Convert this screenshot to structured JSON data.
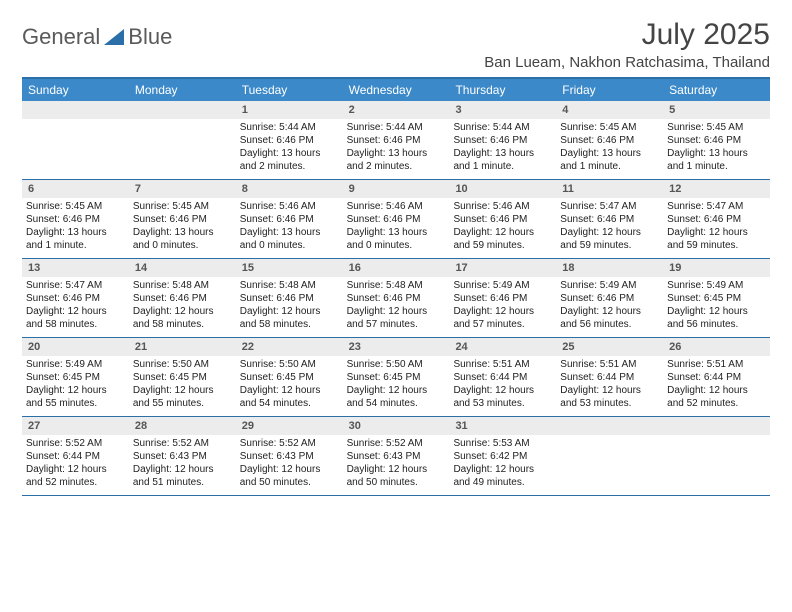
{
  "logo": {
    "word1": "General",
    "word2": "Blue"
  },
  "title": "July 2025",
  "location": "Ban Lueam, Nakhon Ratchasima, Thailand",
  "colors": {
    "header_bg": "#3b89c9",
    "header_text": "#ffffff",
    "border": "#2a6fa8",
    "daynum_bg": "#ececec",
    "daynum_text": "#555555",
    "body_text": "#222222",
    "logo_gray": "#5a5a5a",
    "logo_blue": "#2a6fa8"
  },
  "day_names": [
    "Sunday",
    "Monday",
    "Tuesday",
    "Wednesday",
    "Thursday",
    "Friday",
    "Saturday"
  ],
  "weeks": [
    [
      {
        "blank": true
      },
      {
        "blank": true
      },
      {
        "num": "1",
        "sunrise": "Sunrise: 5:44 AM",
        "sunset": "Sunset: 6:46 PM",
        "daylight": "Daylight: 13 hours and 2 minutes."
      },
      {
        "num": "2",
        "sunrise": "Sunrise: 5:44 AM",
        "sunset": "Sunset: 6:46 PM",
        "daylight": "Daylight: 13 hours and 2 minutes."
      },
      {
        "num": "3",
        "sunrise": "Sunrise: 5:44 AM",
        "sunset": "Sunset: 6:46 PM",
        "daylight": "Daylight: 13 hours and 1 minute."
      },
      {
        "num": "4",
        "sunrise": "Sunrise: 5:45 AM",
        "sunset": "Sunset: 6:46 PM",
        "daylight": "Daylight: 13 hours and 1 minute."
      },
      {
        "num": "5",
        "sunrise": "Sunrise: 5:45 AM",
        "sunset": "Sunset: 6:46 PM",
        "daylight": "Daylight: 13 hours and 1 minute."
      }
    ],
    [
      {
        "num": "6",
        "sunrise": "Sunrise: 5:45 AM",
        "sunset": "Sunset: 6:46 PM",
        "daylight": "Daylight: 13 hours and 1 minute."
      },
      {
        "num": "7",
        "sunrise": "Sunrise: 5:45 AM",
        "sunset": "Sunset: 6:46 PM",
        "daylight": "Daylight: 13 hours and 0 minutes."
      },
      {
        "num": "8",
        "sunrise": "Sunrise: 5:46 AM",
        "sunset": "Sunset: 6:46 PM",
        "daylight": "Daylight: 13 hours and 0 minutes."
      },
      {
        "num": "9",
        "sunrise": "Sunrise: 5:46 AM",
        "sunset": "Sunset: 6:46 PM",
        "daylight": "Daylight: 13 hours and 0 minutes."
      },
      {
        "num": "10",
        "sunrise": "Sunrise: 5:46 AM",
        "sunset": "Sunset: 6:46 PM",
        "daylight": "Daylight: 12 hours and 59 minutes."
      },
      {
        "num": "11",
        "sunrise": "Sunrise: 5:47 AM",
        "sunset": "Sunset: 6:46 PM",
        "daylight": "Daylight: 12 hours and 59 minutes."
      },
      {
        "num": "12",
        "sunrise": "Sunrise: 5:47 AM",
        "sunset": "Sunset: 6:46 PM",
        "daylight": "Daylight: 12 hours and 59 minutes."
      }
    ],
    [
      {
        "num": "13",
        "sunrise": "Sunrise: 5:47 AM",
        "sunset": "Sunset: 6:46 PM",
        "daylight": "Daylight: 12 hours and 58 minutes."
      },
      {
        "num": "14",
        "sunrise": "Sunrise: 5:48 AM",
        "sunset": "Sunset: 6:46 PM",
        "daylight": "Daylight: 12 hours and 58 minutes."
      },
      {
        "num": "15",
        "sunrise": "Sunrise: 5:48 AM",
        "sunset": "Sunset: 6:46 PM",
        "daylight": "Daylight: 12 hours and 58 minutes."
      },
      {
        "num": "16",
        "sunrise": "Sunrise: 5:48 AM",
        "sunset": "Sunset: 6:46 PM",
        "daylight": "Daylight: 12 hours and 57 minutes."
      },
      {
        "num": "17",
        "sunrise": "Sunrise: 5:49 AM",
        "sunset": "Sunset: 6:46 PM",
        "daylight": "Daylight: 12 hours and 57 minutes."
      },
      {
        "num": "18",
        "sunrise": "Sunrise: 5:49 AM",
        "sunset": "Sunset: 6:46 PM",
        "daylight": "Daylight: 12 hours and 56 minutes."
      },
      {
        "num": "19",
        "sunrise": "Sunrise: 5:49 AM",
        "sunset": "Sunset: 6:45 PM",
        "daylight": "Daylight: 12 hours and 56 minutes."
      }
    ],
    [
      {
        "num": "20",
        "sunrise": "Sunrise: 5:49 AM",
        "sunset": "Sunset: 6:45 PM",
        "daylight": "Daylight: 12 hours and 55 minutes."
      },
      {
        "num": "21",
        "sunrise": "Sunrise: 5:50 AM",
        "sunset": "Sunset: 6:45 PM",
        "daylight": "Daylight: 12 hours and 55 minutes."
      },
      {
        "num": "22",
        "sunrise": "Sunrise: 5:50 AM",
        "sunset": "Sunset: 6:45 PM",
        "daylight": "Daylight: 12 hours and 54 minutes."
      },
      {
        "num": "23",
        "sunrise": "Sunrise: 5:50 AM",
        "sunset": "Sunset: 6:45 PM",
        "daylight": "Daylight: 12 hours and 54 minutes."
      },
      {
        "num": "24",
        "sunrise": "Sunrise: 5:51 AM",
        "sunset": "Sunset: 6:44 PM",
        "daylight": "Daylight: 12 hours and 53 minutes."
      },
      {
        "num": "25",
        "sunrise": "Sunrise: 5:51 AM",
        "sunset": "Sunset: 6:44 PM",
        "daylight": "Daylight: 12 hours and 53 minutes."
      },
      {
        "num": "26",
        "sunrise": "Sunrise: 5:51 AM",
        "sunset": "Sunset: 6:44 PM",
        "daylight": "Daylight: 12 hours and 52 minutes."
      }
    ],
    [
      {
        "num": "27",
        "sunrise": "Sunrise: 5:52 AM",
        "sunset": "Sunset: 6:44 PM",
        "daylight": "Daylight: 12 hours and 52 minutes."
      },
      {
        "num": "28",
        "sunrise": "Sunrise: 5:52 AM",
        "sunset": "Sunset: 6:43 PM",
        "daylight": "Daylight: 12 hours and 51 minutes."
      },
      {
        "num": "29",
        "sunrise": "Sunrise: 5:52 AM",
        "sunset": "Sunset: 6:43 PM",
        "daylight": "Daylight: 12 hours and 50 minutes."
      },
      {
        "num": "30",
        "sunrise": "Sunrise: 5:52 AM",
        "sunset": "Sunset: 6:43 PM",
        "daylight": "Daylight: 12 hours and 50 minutes."
      },
      {
        "num": "31",
        "sunrise": "Sunrise: 5:53 AM",
        "sunset": "Sunset: 6:42 PM",
        "daylight": "Daylight: 12 hours and 49 minutes."
      },
      {
        "blank": true
      },
      {
        "blank": true
      }
    ]
  ]
}
